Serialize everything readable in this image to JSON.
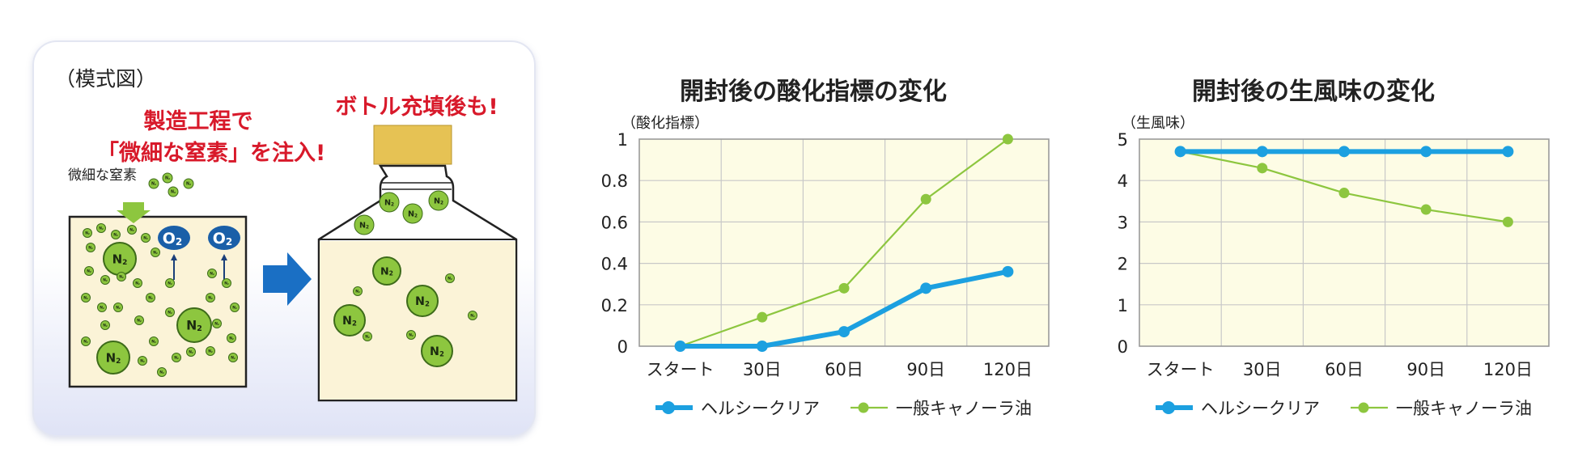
{
  "schematic": {
    "caption": "（模式図）",
    "headline_line1": "製造工程で",
    "headline_line2": "「微細な窒素」を注入!",
    "bottle_headline": "ボトル充填後も!",
    "small_label": "微細な窒素",
    "n2_label": "N",
    "o2_label": "O",
    "subscript": "2",
    "colors": {
      "red": "#d8192a",
      "green": "#8dc63f",
      "blue": "#1a5fa8",
      "cream": "#fbf3d7"
    }
  },
  "chart_data": [
    {
      "type": "line",
      "title": "開封後の酸化指標の変化",
      "ylabel": "（酸化指標）",
      "xlabel": "",
      "categories": [
        "スタート",
        "30日",
        "60日",
        "90日",
        "120日"
      ],
      "y_ticks": [
        "0",
        "0.2",
        "0.4",
        "0.6",
        "0.8",
        "1"
      ],
      "ylim": [
        0,
        1
      ],
      "grid": true,
      "legend": "bottom",
      "series": [
        {
          "name": "ヘルシークリア",
          "color": "#1ca0e0",
          "values": [
            0,
            0,
            0.07,
            0.28,
            0.36
          ]
        },
        {
          "name": "一般キャノーラ油",
          "color": "#8dc63f",
          "values": [
            0,
            0.14,
            0.28,
            0.71,
            1.0
          ]
        }
      ]
    },
    {
      "type": "line",
      "title": "開封後の生風味の変化",
      "ylabel": "（生風味）",
      "xlabel": "",
      "categories": [
        "スタート",
        "30日",
        "60日",
        "90日",
        "120日"
      ],
      "y_ticks": [
        "0",
        "1",
        "2",
        "3",
        "4",
        "5"
      ],
      "ylim": [
        0,
        5
      ],
      "grid": true,
      "legend": "bottom",
      "series": [
        {
          "name": "ヘルシークリア",
          "color": "#1ca0e0",
          "values": [
            4.7,
            4.7,
            4.7,
            4.7,
            4.7
          ]
        },
        {
          "name": "一般キャノーラ油",
          "color": "#8dc63f",
          "values": [
            4.7,
            4.3,
            3.7,
            3.3,
            3.0
          ]
        }
      ]
    }
  ]
}
